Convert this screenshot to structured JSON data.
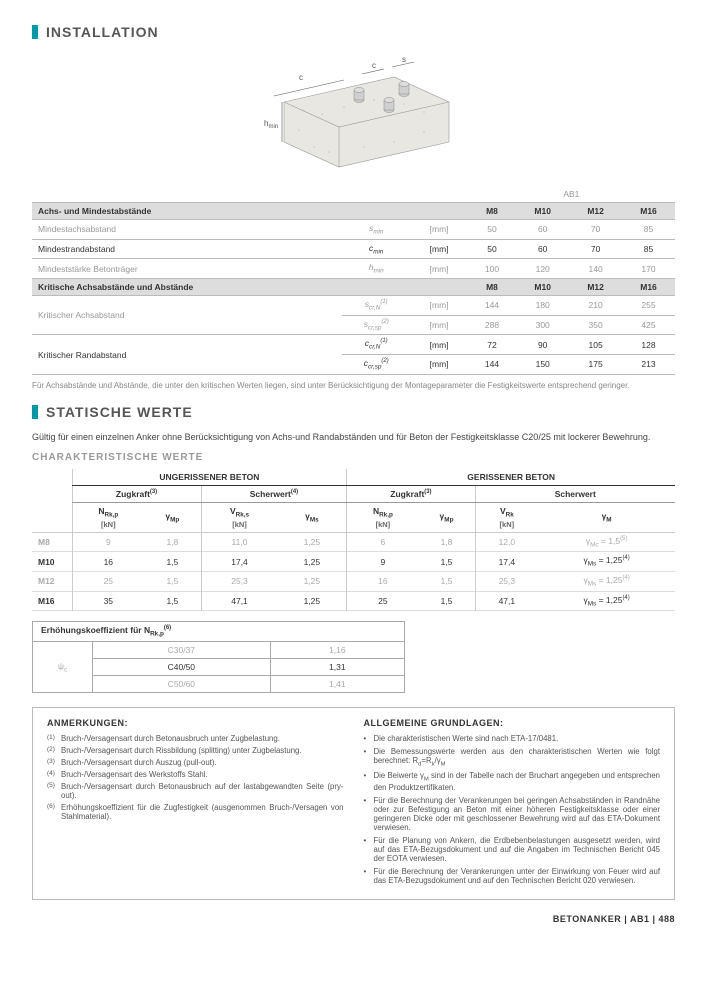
{
  "section1": {
    "title": "INSTALLATION"
  },
  "diagram": {
    "labels": {
      "c": "c",
      "s": "s",
      "hmin": "h",
      "hmin_sub": "min"
    },
    "colors": {
      "concrete_fill": "#e9e7e2",
      "anchor": "#b8b8b8",
      "line": "#777",
      "dot": "#b0aea8"
    }
  },
  "table1": {
    "product_header": "AB1",
    "rows_header1": "Achs- und Mindestabstände",
    "cols": [
      "M8",
      "M10",
      "M12",
      "M16"
    ],
    "r1": {
      "label": "Mindestachsabstand",
      "sym": "s",
      "sub": "min",
      "unit": "[mm]",
      "vals": [
        "50",
        "60",
        "70",
        "85"
      ]
    },
    "r2": {
      "label": "Mindestrandabstand",
      "sym": "c",
      "sub": "min",
      "unit": "[mm]",
      "vals": [
        "50",
        "60",
        "70",
        "85"
      ]
    },
    "r3": {
      "label": "Mindeststärke Betonträger",
      "sym": "h",
      "sub": "min",
      "unit": "[mm]",
      "vals": [
        "100",
        "120",
        "140",
        "170"
      ]
    },
    "rows_header2": "Kritische Achsabstände und Abstände",
    "r4": {
      "label": "Kritischer Achsabstand",
      "sym1": "s",
      "sub1": "cr,N",
      "sup1": "(1)",
      "unit": "[mm]",
      "vals1": [
        "144",
        "180",
        "210",
        "255"
      ],
      "sym2": "s",
      "sub2": "cr,sp",
      "sup2": "(2)",
      "vals2": [
        "288",
        "300",
        "350",
        "425"
      ]
    },
    "r5": {
      "label": "Kritischer Randabstand",
      "sym1": "c",
      "sub1": "cr,N",
      "sup1": "(1)",
      "unit": "[mm]",
      "vals1": [
        "72",
        "90",
        "105",
        "128"
      ],
      "sym2": "c",
      "sub2": "cr,sp",
      "sup2": "(2)",
      "vals2": [
        "144",
        "150",
        "175",
        "213"
      ]
    },
    "note": "Für Achsabstände und Abstände, die unter den kritischen Werten liegen, sind unter Berücksichtigung der Montageparameter die Festigkeitswerte entsprechend geringer."
  },
  "section2": {
    "title": "STATISCHE WERTE"
  },
  "intro": "Gültig für einen einzelnen Anker ohne Berücksichtigung von Achs-und Randabständen und für Beton der Festigkeitsklasse C20/25 mit lockerer Bewehrung.",
  "subhead": "CHARAKTERISTISCHE WERTE",
  "table2": {
    "group1": "UNGERISSENER BETON",
    "group2": "GERISSENER BETON",
    "sub_zug": "Zugkraft",
    "sub_zug_sup": "(3)",
    "sub_scher": "Scherwert",
    "sub_scher_sup": "(4)",
    "col_N": "N",
    "col_N_sub": "Rk,p",
    "col_N_unit": "[kN]",
    "col_gMp": "γ",
    "col_gMp_sub": "Mp",
    "col_V": "V",
    "col_V_sub": "Rk,s",
    "col_V_unit": "[kN]",
    "col_gMs": "γ",
    "col_gMs_sub": "Ms",
    "col_V2": "V",
    "col_V2_sub": "Rk",
    "col_gM": "γ",
    "col_gM_sub": "M",
    "rows": [
      {
        "label": "M8",
        "alt": true,
        "v": [
          "9",
          "1,8",
          "11,0",
          "1,25",
          "6",
          "1,8",
          "12,0"
        ],
        "last_sym": "γ",
        "last_sub": "Mc",
        "last_eq": " = 1,5",
        "last_sup": "(5)"
      },
      {
        "label": "M10",
        "alt": false,
        "v": [
          "16",
          "1,5",
          "17,4",
          "1,25",
          "9",
          "1,5",
          "17,4"
        ],
        "last_sym": "γ",
        "last_sub": "Ms",
        "last_eq": " = 1,25",
        "last_sup": "(4)"
      },
      {
        "label": "M12",
        "alt": true,
        "v": [
          "25",
          "1,5",
          "25,3",
          "1,25",
          "16",
          "1,5",
          "25,3"
        ],
        "last_sym": "γ",
        "last_sub": "Ms",
        "last_eq": " = 1,25",
        "last_sup": "(4)"
      },
      {
        "label": "M16",
        "alt": false,
        "v": [
          "35",
          "1,5",
          "47,1",
          "1,25",
          "25",
          "1,5",
          "47,1"
        ],
        "last_sym": "γ",
        "last_sub": "Ms",
        "last_eq": " = 1,25",
        "last_sup": "(4)"
      }
    ]
  },
  "coef": {
    "title_a": "Erhöhungskoeffizient für N",
    "title_sub": "Rk,p",
    "title_sup": "(6)",
    "rowlabel": "ψ",
    "rowlabel_sub": "c",
    "rows": [
      {
        "c": "C30/37",
        "v": "1,16",
        "alt": true
      },
      {
        "c": "C40/50",
        "v": "1,31",
        "alt": false
      },
      {
        "c": "C50/60",
        "v": "1,41",
        "alt": true
      }
    ]
  },
  "notes": {
    "left_title": "ANMERKUNGEN:",
    "left": [
      "Bruch-/Versagensart durch Betonausbruch unter Zugbelastung.",
      "Bruch-/Versagensart durch Rissbildung (splitting) unter Zugbelastung.",
      "Bruch-/Versagensart durch Auszug (pull-out).",
      "Bruch-/Versagensart des Werkstoffs Stahl.",
      "Bruch-/Versagensart durch Betonausbruch auf der lastabgewandten Seite (pry-out).",
      "Erhöhungskoeffizient für die Zugfestigkeit (ausgenommen Bruch-/Versagen von Stahlmaterial)."
    ],
    "right_title": "ALLGEMEINE GRUNDLAGEN:",
    "right": [
      "Die charakteristischen Werte sind nach ETA-17/0481.",
      "Die Bemessungswerte werden aus den charakteristischen Werten wie folgt berechnet: R<sub>d</sub>=R<sub>k</sub>/γ<sub>M</sub>",
      "Die Beiwerte γ<sub>M</sub> sind in der Tabelle nach der Bruchart angegeben und entsprechen den Produktzertifikaten.",
      "Für die Berechnung der Verankerungen bei geringen Achsabständen in Randnähe oder zur Befestigung an Beton mit einer höheren Festigkeitsklasse oder einer geringeren Dicke oder mit geschlossener Bewehrung wird auf das ETA-Dokument verwiesen.",
      "Für die Planung von Ankern, die Erdbebenbelastungen ausgesetzt werden, wird auf das ETA-Bezugsdokument und auf die Angaben im Technischen Bericht 045 der EOTA verwiesen.",
      "Für die Berechnung der Verankerungen unter der Einwirkung von Feuer wird auf das ETA-Bezugsdokument und auf den Technischen Bericht 020 verwiesen."
    ]
  },
  "footer": {
    "text": "BETONANKER | AB1 | 488"
  }
}
